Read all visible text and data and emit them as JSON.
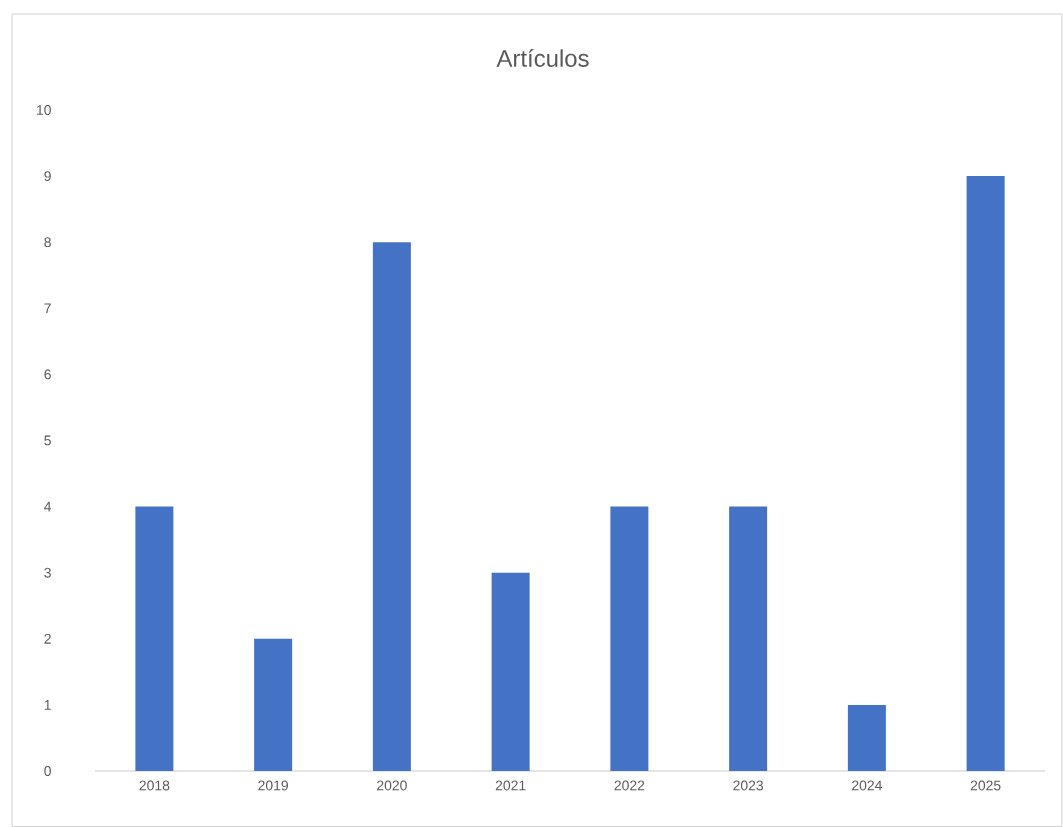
{
  "chart_data": {
    "type": "bar",
    "title": "Artículos",
    "categories": [
      "2018",
      "2019",
      "2020",
      "2021",
      "2022",
      "2023",
      "2024",
      "2025"
    ],
    "values": [
      4,
      2,
      8,
      3,
      4,
      4,
      1,
      9
    ],
    "color": "#4472c4",
    "ylim": [
      0,
      10
    ],
    "yticks": [
      0,
      1,
      2,
      3,
      4,
      5,
      6,
      7,
      8,
      9,
      10
    ]
  }
}
